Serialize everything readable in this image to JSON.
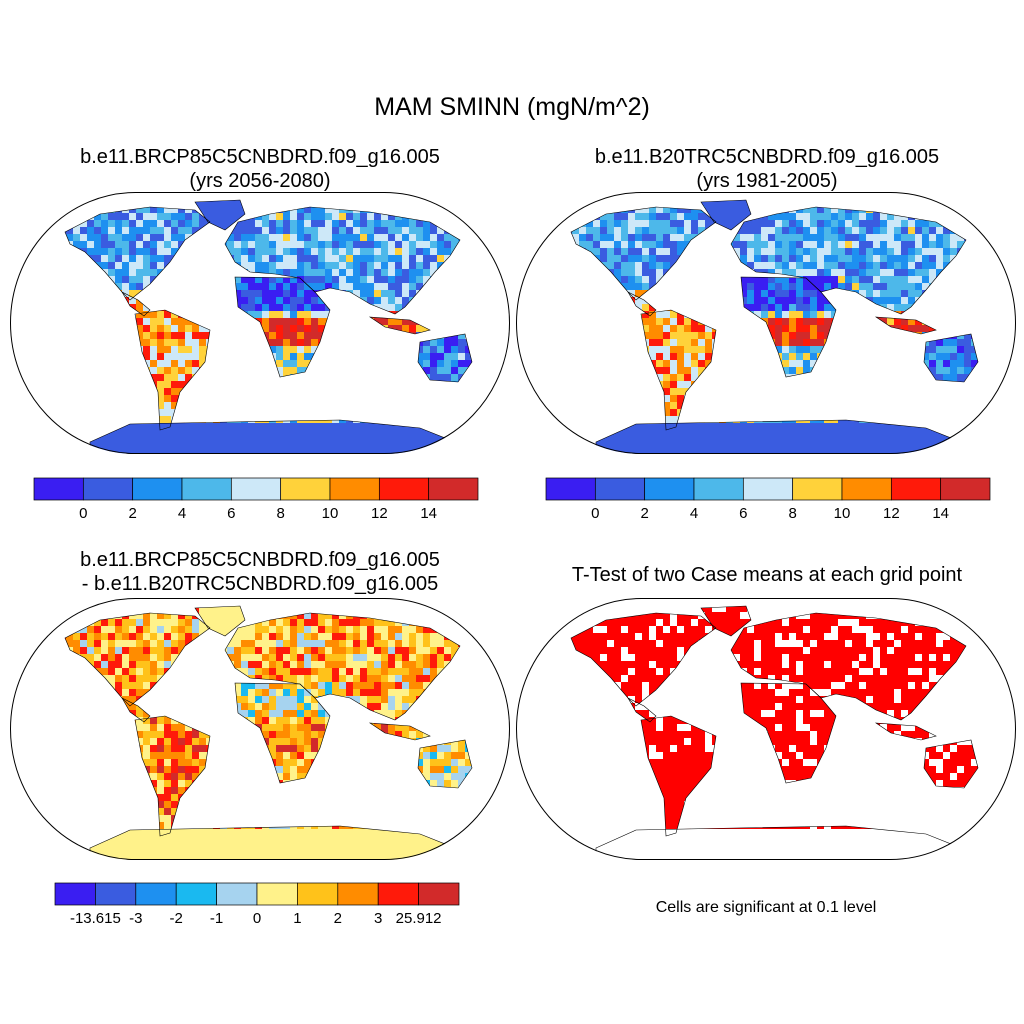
{
  "main_title": "MAM SMINN (mgN/m^2)",
  "panels": [
    {
      "id": "p1",
      "title": "b.e11.BRCP85C5CNBDRD.f09_g16.005\n(yrs 2056-2080)",
      "scheme": "abs"
    },
    {
      "id": "p2",
      "title": "b.e11.B20TRC5CNBDRD.f09_g16.005\n(yrs 1981-2005)",
      "scheme": "abs"
    },
    {
      "id": "p3",
      "title": "b.e11.BRCP85C5CNBDRD.f09_g16.005\n- b.e11.B20TRC5CNBDRD.f09_g16.005",
      "scheme": "diff"
    },
    {
      "id": "p4",
      "title": "T-Test of two Case means at each grid point",
      "scheme": "ttest"
    }
  ],
  "colorbars": {
    "abs": {
      "colors": [
        "#3a1ef2",
        "#3a5ce0",
        "#1e90f0",
        "#4db8ea",
        "#cde8f8",
        "#ffd23a",
        "#ff8c00",
        "#ff1a0a",
        "#d22a2a"
      ],
      "labels": [
        "0",
        "2",
        "4",
        "6",
        "8",
        "10",
        "12",
        "14"
      ]
    },
    "diff": {
      "colors": [
        "#3a1ef2",
        "#3a5ce0",
        "#1e90f0",
        "#1ab9f0",
        "#a6d3ef",
        "#fff28a",
        "#ffc21a",
        "#ff8c00",
        "#ff1a0a",
        "#d22a2a"
      ],
      "labels": [
        "-13.615",
        "-3",
        "-2",
        "-1",
        "0",
        "1",
        "2",
        "3",
        "25.912"
      ]
    }
  },
  "ttest_note": "Cells are significant at 0.1 level",
  "ttest_color": "#ff0000"
}
